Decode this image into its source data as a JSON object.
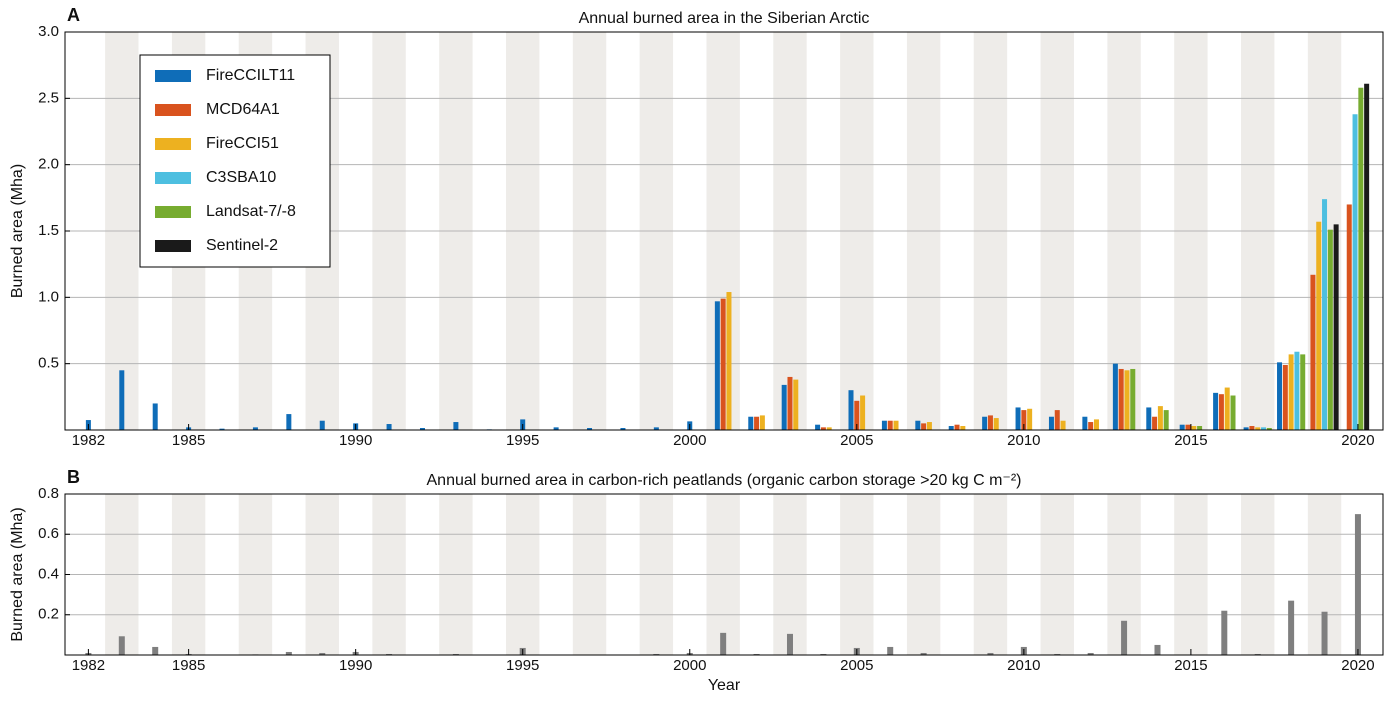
{
  "chart_data": [
    {
      "type": "bar",
      "panel_label": "A",
      "title": "Annual burned area in the Siberian Arctic",
      "ylabel": "Burned area (Mha)",
      "x": [
        1982,
        1983,
        1984,
        1985,
        1986,
        1987,
        1988,
        1989,
        1990,
        1991,
        1992,
        1993,
        1994,
        1995,
        1996,
        1997,
        1998,
        1999,
        2000,
        2001,
        2002,
        2003,
        2004,
        2005,
        2006,
        2007,
        2008,
        2009,
        2010,
        2011,
        2012,
        2013,
        2014,
        2015,
        2016,
        2017,
        2018,
        2019,
        2020
      ],
      "xlim": [
        1981.3,
        2020.75
      ],
      "xticks": [
        1982,
        1985,
        1990,
        1995,
        2000,
        2005,
        2010,
        2015,
        2020
      ],
      "ylim": [
        0,
        3
      ],
      "yticks": [
        0.5,
        {
          "value": 1,
          "label": "1.0"
        },
        1.5,
        {
          "value": 2,
          "label": "2.0"
        },
        2.5,
        {
          "value": 3,
          "label": "3.0"
        }
      ],
      "grid": true,
      "legend": "upper left",
      "series": [
        {
          "name": "FireCCILT11",
          "color": "#0f6db8",
          "values": [
            0.075,
            0.45,
            0.2,
            0.02,
            0.01,
            0.02,
            0.12,
            0.07,
            0.05,
            0.045,
            0.015,
            0.06,
            0.005,
            0.08,
            0.02,
            0.015,
            0.015,
            0.02,
            0.065,
            0.97,
            0.1,
            0.34,
            0.04,
            0.3,
            0.07,
            0.07,
            0.03,
            0.1,
            0.17,
            0.1,
            0.1,
            0.5,
            0.17,
            0.04,
            0.28,
            0.02,
            0.51,
            null,
            null
          ]
        },
        {
          "name": "MCD64A1",
          "color": "#d9531e",
          "values": [
            null,
            null,
            null,
            null,
            null,
            null,
            null,
            null,
            null,
            null,
            null,
            null,
            null,
            null,
            null,
            null,
            null,
            null,
            null,
            0.99,
            0.1,
            0.4,
            0.02,
            0.22,
            0.07,
            0.05,
            0.04,
            0.11,
            0.15,
            0.15,
            0.06,
            0.46,
            0.1,
            0.04,
            0.27,
            0.03,
            0.49,
            1.17,
            1.7
          ]
        },
        {
          "name": "FireCCI51",
          "color": "#edb120",
          "values": [
            null,
            null,
            null,
            null,
            null,
            null,
            null,
            null,
            null,
            null,
            null,
            null,
            null,
            null,
            null,
            null,
            null,
            null,
            null,
            1.04,
            0.11,
            0.38,
            0.02,
            0.26,
            0.07,
            0.06,
            0.03,
            0.09,
            0.16,
            0.07,
            0.08,
            0.45,
            0.18,
            0.03,
            0.32,
            0.02,
            0.57,
            1.57,
            null
          ]
        },
        {
          "name": "C3SBA10",
          "color": "#4dbfe0",
          "values": [
            null,
            null,
            null,
            null,
            null,
            null,
            null,
            null,
            null,
            null,
            null,
            null,
            null,
            null,
            null,
            null,
            null,
            null,
            null,
            null,
            null,
            null,
            null,
            null,
            null,
            null,
            null,
            null,
            null,
            null,
            null,
            null,
            null,
            null,
            null,
            0.02,
            0.59,
            1.74,
            2.38
          ]
        },
        {
          "name": "Landsat-7/-8",
          "color": "#77ac30",
          "values": [
            null,
            null,
            null,
            null,
            null,
            null,
            null,
            null,
            null,
            null,
            null,
            null,
            null,
            null,
            null,
            null,
            null,
            null,
            null,
            null,
            null,
            null,
            null,
            null,
            null,
            null,
            null,
            null,
            null,
            null,
            null,
            0.46,
            0.15,
            0.03,
            0.26,
            0.015,
            0.57,
            1.51,
            2.58
          ]
        },
        {
          "name": "Sentinel-2",
          "color": "#1a1a1a",
          "values": [
            null,
            null,
            null,
            null,
            null,
            null,
            null,
            null,
            null,
            null,
            null,
            null,
            null,
            null,
            null,
            null,
            null,
            null,
            null,
            null,
            null,
            null,
            null,
            null,
            null,
            null,
            null,
            null,
            null,
            null,
            null,
            null,
            null,
            null,
            null,
            null,
            null,
            1.55,
            2.61
          ]
        }
      ]
    },
    {
      "type": "bar",
      "panel_label": "B",
      "title": "Annual burned area in carbon-rich peatlands (organic carbon storage >20 kg C m⁻²)",
      "ylabel": "Burned area (Mha)",
      "xlabel": "Year",
      "x": [
        1982,
        1983,
        1984,
        1985,
        1986,
        1987,
        1988,
        1989,
        1990,
        1991,
        1992,
        1993,
        1994,
        1995,
        1996,
        1997,
        1998,
        1999,
        2000,
        2001,
        2002,
        2003,
        2004,
        2005,
        2006,
        2007,
        2008,
        2009,
        2010,
        2011,
        2012,
        2013,
        2014,
        2015,
        2016,
        2017,
        2018,
        2019,
        2020
      ],
      "xlim": [
        1981.3,
        2020.75
      ],
      "xticks": [
        1982,
        1985,
        1990,
        1995,
        2000,
        2005,
        2010,
        2015,
        2020
      ],
      "ylim": [
        0,
        0.8
      ],
      "yticks": [
        0.2,
        0.4,
        0.6,
        0.8
      ],
      "grid": true,
      "series": [
        {
          "color": "#7f7f7f",
          "values": [
            0.01,
            0.093,
            0.04,
            0.005,
            0.002,
            0.003,
            0.015,
            0.01,
            0.015,
            0.005,
            0.002,
            0.005,
            0.002,
            0.035,
            0.002,
            0.002,
            0.002,
            0.005,
            0.01,
            0.11,
            0.005,
            0.105,
            0.005,
            0.035,
            0.04,
            0.01,
            0.002,
            0.01,
            0.04,
            0.005,
            0.01,
            0.17,
            0.05,
            0.002,
            0.22,
            0.005,
            0.27,
            0.215,
            0.7
          ]
        }
      ]
    }
  ]
}
